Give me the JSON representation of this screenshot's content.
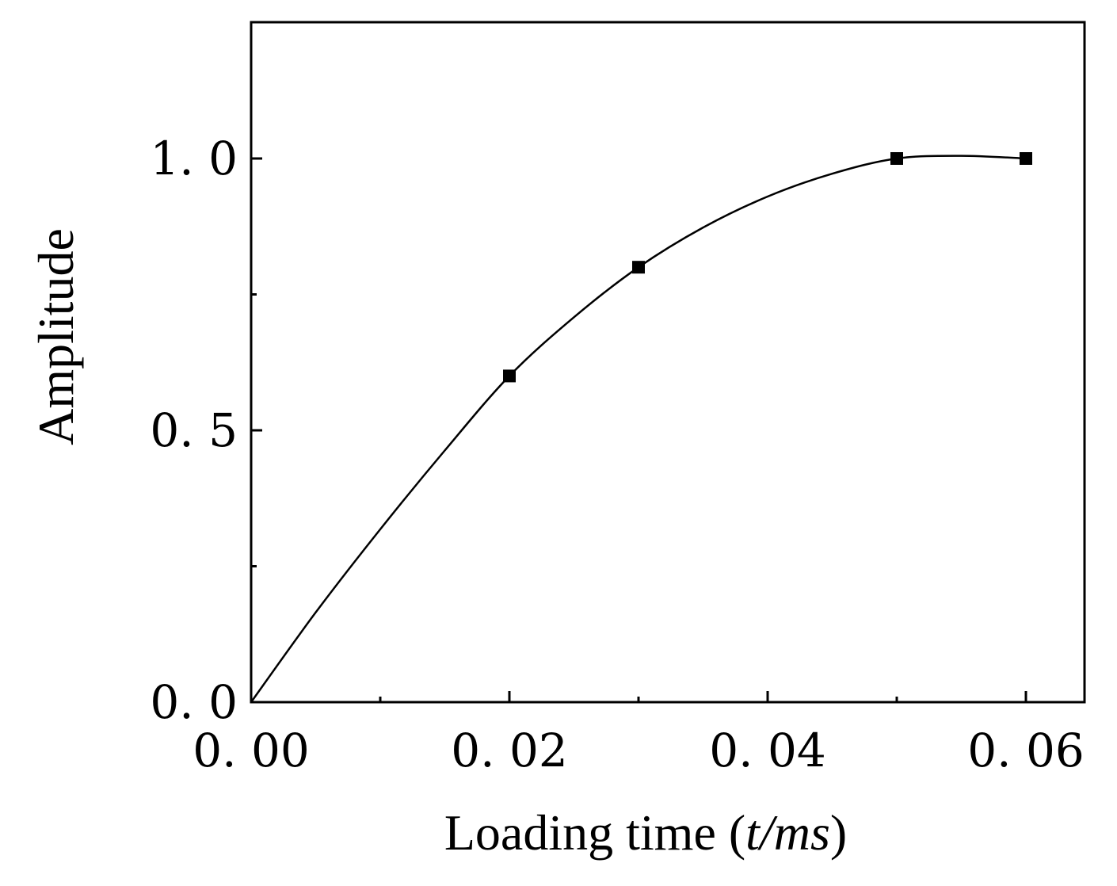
{
  "chart_data": {
    "type": "line",
    "title": "",
    "xlabel": "Loading time (",
    "xlabel_unit": "t/ms",
    "xlabel_close": ")",
    "ylabel": "Amplitude",
    "xlim": [
      0,
      0.065
    ],
    "ylim": [
      0,
      1.25
    ],
    "x_ticks": [
      0,
      0.02,
      0.04,
      0.06
    ],
    "x_tick_labels": [
      "0. 00",
      "0. 02",
      "0. 04",
      "0. 06"
    ],
    "x_minor_ticks": [
      0.01,
      0.03,
      0.05
    ],
    "y_ticks": [
      0,
      0.5,
      1.0
    ],
    "y_tick_labels": [
      "0. 0",
      "0. 5",
      "1. 0"
    ],
    "y_minor_ticks": [
      0.25,
      0.75
    ],
    "grid": false,
    "series": [
      {
        "marker": "square",
        "color": "#000000",
        "markers": {
          "x": [
            0.02,
            0.03,
            0.05,
            0.06
          ],
          "y": [
            0.6,
            0.8,
            1.0,
            1.0
          ]
        },
        "curve": {
          "x": [
            0,
            0.005,
            0.01,
            0.015,
            0.02,
            0.025,
            0.03,
            0.035,
            0.04,
            0.045,
            0.05,
            0.055,
            0.06
          ],
          "y": [
            0,
            0.165,
            0.318,
            0.463,
            0.6,
            0.708,
            0.8,
            0.873,
            0.93,
            0.972,
            1.0,
            1.005,
            1.0
          ]
        }
      }
    ]
  }
}
